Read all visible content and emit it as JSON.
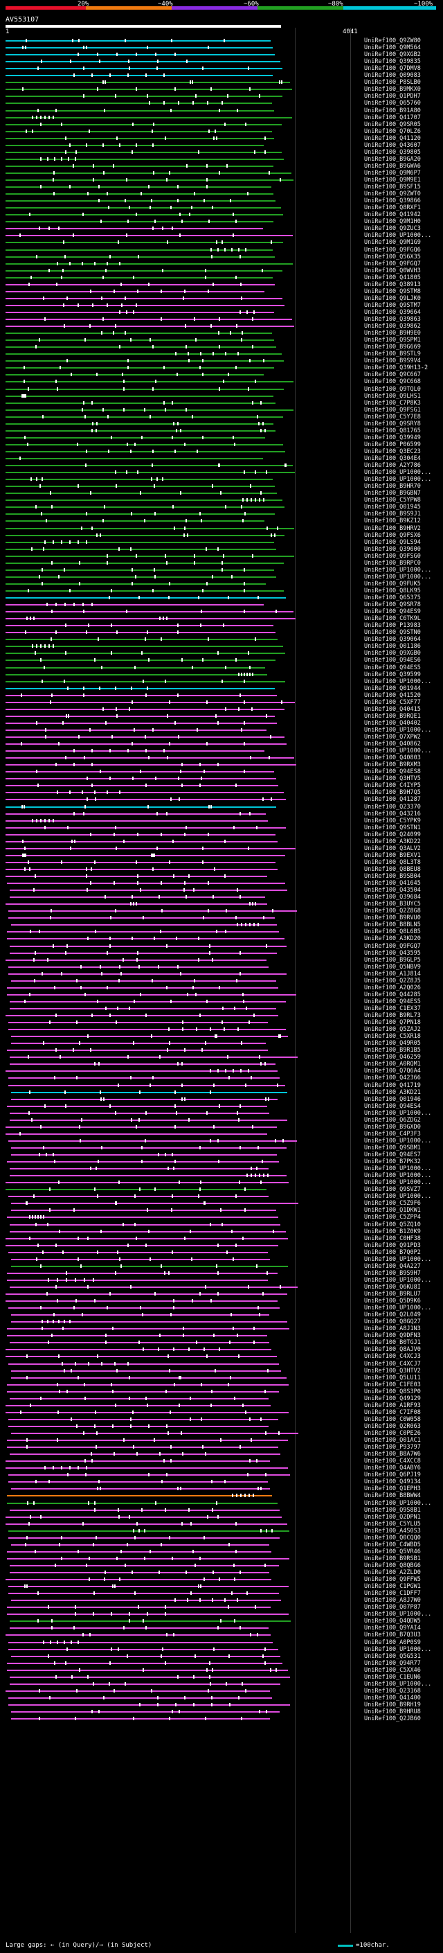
{
  "scale": {
    "segments": [
      {
        "color": "#e8102a",
        "label": "20%"
      },
      {
        "color": "#f07a10",
        "label": "~40%"
      },
      {
        "color": "#8a2be2",
        "label": "~60%"
      },
      {
        "color": "#22a022",
        "label": "~80%"
      },
      {
        "color": "#00c6d8",
        "label": "~100%"
      }
    ]
  },
  "query": {
    "name": "AV553107",
    "start": "1",
    "end": "4041"
  },
  "rows": [
    {
      "label": "UniRef100_Q9ZW80",
      "color": "#00c6d8"
    },
    {
      "label": "UniRef100_Q9M564",
      "color": "#00c6d8"
    },
    {
      "label": "UniRef100_Q9XGB2",
      "color": "#00c6d8"
    },
    {
      "label": "UniRef100_Q39835",
      "color": "#00c6d8"
    },
    {
      "label": "UniRef100_Q7DMV8",
      "color": "#00c6d8"
    },
    {
      "label": "UniRef100_Q09083",
      "color": "#00c6d8"
    },
    {
      "label": "UniRef100_P8SLB0",
      "color": "#22a022"
    },
    {
      "label": "UniRef100_B9MKX0",
      "color": "#22a022"
    },
    {
      "label": "UniRef100_Q1PDH7",
      "color": "#22a022"
    },
    {
      "label": "UniRef100_Q65760",
      "color": "#22a022"
    },
    {
      "label": "UniRef100_B91A80",
      "color": "#22a022"
    },
    {
      "label": "UniRef100_Q41707",
      "color": "#22a022"
    },
    {
      "label": "UniRef100_Q9SR05",
      "color": "#22a022"
    },
    {
      "label": "UniRef100_Q70LZ6",
      "color": "#22a022"
    },
    {
      "label": "UniRef100_Q41120",
      "color": "#22a022"
    },
    {
      "label": "UniRef100_Q43607",
      "color": "#22a022"
    },
    {
      "label": "UniRef100_Q39805",
      "color": "#22a022"
    },
    {
      "label": "UniRef100_B9GA20",
      "color": "#22a022"
    },
    {
      "label": "UniRef100_B9GWA6",
      "color": "#22a022"
    },
    {
      "label": "UniRef100_Q9M6P7",
      "color": "#22a022"
    },
    {
      "label": "UniRef100_Q9M9E1",
      "color": "#22a022"
    },
    {
      "label": "UniRef100_B9SF15",
      "color": "#22a022"
    },
    {
      "label": "UniRef100_Q9ZWT0",
      "color": "#22a022"
    },
    {
      "label": "UniRef100_Q39866",
      "color": "#22a022"
    },
    {
      "label": "UniRef100_Q8RXF1",
      "color": "#22a022"
    },
    {
      "label": "UniRef100_Q41942",
      "color": "#22a022"
    },
    {
      "label": "UniRef100_Q9M1H0",
      "color": "#22a022"
    },
    {
      "label": "UniRef100_Q9ZUC3",
      "color": "#e04ce0"
    },
    {
      "label": "UniRef100_UP1000...",
      "color": "#e04ce0"
    },
    {
      "label": "UniRef100_Q9M1G9",
      "color": "#22a022"
    },
    {
      "label": "UniRef100_Q9FGQ6",
      "color": "#22a022"
    },
    {
      "label": "UniRef100_Q56X35",
      "color": "#22a022"
    },
    {
      "label": "UniRef100_Q9FGQ7",
      "color": "#22a022"
    },
    {
      "label": "UniRef100_Q0WVH3",
      "color": "#22a022"
    },
    {
      "label": "UniRef100_Q41805",
      "color": "#22a022"
    },
    {
      "label": "UniRef100_Q38913",
      "color": "#e04ce0"
    },
    {
      "label": "UniRef100_Q9STM8",
      "color": "#e04ce0"
    },
    {
      "label": "UniRef100_Q9LJK0",
      "color": "#e04ce0"
    },
    {
      "label": "UniRef100_Q9STM7",
      "color": "#e04ce0"
    },
    {
      "label": "UniRef100_Q39664",
      "color": "#e04ce0"
    },
    {
      "label": "UniRef100_Q39863",
      "color": "#e04ce0"
    },
    {
      "label": "UniRef100_Q39862",
      "color": "#e04ce0"
    },
    {
      "label": "UniRef100_B9H9E0",
      "color": "#22a022"
    },
    {
      "label": "UniRef100_Q9SPM1",
      "color": "#22a022"
    },
    {
      "label": "UniRef100_B9G669",
      "color": "#22a022"
    },
    {
      "label": "UniRef100_B9STL9",
      "color": "#22a022"
    },
    {
      "label": "UniRef100_B9S9V4",
      "color": "#22a022"
    },
    {
      "label": "UniRef100_Q39H13-2",
      "color": "#22a022"
    },
    {
      "label": "UniRef100_Q9C667",
      "color": "#22a022"
    },
    {
      "label": "UniRef100_Q9C668",
      "color": "#22a022"
    },
    {
      "label": "UniRef100_Q9TQL0",
      "color": "#22a022"
    },
    {
      "label": "UniRef100_Q9LHS1",
      "color": "#22a022"
    },
    {
      "label": "UniRef100_C7P8K3",
      "color": "#22a022"
    },
    {
      "label": "UniRef100_Q9FSG1",
      "color": "#22a022"
    },
    {
      "label": "UniRef100_C5Y7E8",
      "color": "#22a022"
    },
    {
      "label": "UniRef100_Q9SRY8",
      "color": "#22a022"
    },
    {
      "label": "UniRef100_Q81765",
      "color": "#22a022"
    },
    {
      "label": "UniRef100_Q39949",
      "color": "#22a022"
    },
    {
      "label": "UniRef100_P06599",
      "color": "#22a022"
    },
    {
      "label": "UniRef100_Q3EC23",
      "color": "#22a022"
    },
    {
      "label": "UniRef100_Q304E4",
      "color": "#22a022"
    },
    {
      "label": "UniRef100_A2Y786",
      "color": "#22a022"
    },
    {
      "label": "UniRef100_UP1000...",
      "color": "#22a022"
    },
    {
      "label": "UniRef100_UP1000...",
      "color": "#22a022"
    },
    {
      "label": "UniRef100_B9HR70",
      "color": "#22a022"
    },
    {
      "label": "UniRef100_B9GBN7",
      "color": "#22a022"
    },
    {
      "label": "UniRef100_C5YPW8",
      "color": "#22a022"
    },
    {
      "label": "UniRef100_Q01945",
      "color": "#22a022"
    },
    {
      "label": "UniRef100_B9S9J1",
      "color": "#22a022"
    },
    {
      "label": "UniRef100_B9KZ12",
      "color": "#22a022"
    },
    {
      "label": "UniRef100_B9HRV2",
      "color": "#22a022"
    },
    {
      "label": "UniRef100_Q9FSX6",
      "color": "#22a022"
    },
    {
      "label": "UniRef100_Q9LS94",
      "color": "#22a022"
    },
    {
      "label": "UniRef100_Q39600",
      "color": "#22a022"
    },
    {
      "label": "UniRef100_Q9FSG0",
      "color": "#22a022"
    },
    {
      "label": "UniRef100_B9RPC0",
      "color": "#22a022"
    },
    {
      "label": "UniRef100_UP1000...",
      "color": "#22a022"
    },
    {
      "label": "UniRef100_UP1000...",
      "color": "#22a022"
    },
    {
      "label": "UniRef100_Q9FUK5",
      "color": "#22a022"
    },
    {
      "label": "UniRef100_Q8LK95",
      "color": "#22a022"
    },
    {
      "label": "UniRef100_Q65375",
      "color": "#00c6d8"
    },
    {
      "label": "UniRef100_Q9SR78",
      "color": "#e04ce0"
    },
    {
      "label": "UniRef100_Q94ES9",
      "color": "#e04ce0"
    },
    {
      "label": "UniRef100_C6TK9L",
      "color": "#e04ce0"
    },
    {
      "label": "UniRef100_P13983",
      "color": "#e04ce0"
    },
    {
      "label": "UniRef100_Q9STN0",
      "color": "#e04ce0"
    },
    {
      "label": "UniRef100_Q39064",
      "color": "#22a022"
    },
    {
      "label": "UniRef100_Q01186",
      "color": "#22a022"
    },
    {
      "label": "UniRef100_Q9XGB0",
      "color": "#22a022"
    },
    {
      "label": "UniRef100_Q94ES6",
      "color": "#22a022"
    },
    {
      "label": "UniRef100_Q94ES5",
      "color": "#22a022"
    },
    {
      "label": "UniRef100_Q39599",
      "color": "#22a022"
    },
    {
      "label": "UniRef100_UP1000...",
      "color": "#22a022"
    },
    {
      "label": "UniRef100_Q01944",
      "color": "#00c6d8"
    },
    {
      "label": "UniRef100_Q41520",
      "color": "#e04ce0"
    },
    {
      "label": "UniRef100_C5XF77",
      "color": "#e04ce0"
    },
    {
      "label": "UniRef100_Q40415",
      "color": "#e04ce0"
    },
    {
      "label": "UniRef100_B9RQE1",
      "color": "#e04ce0"
    },
    {
      "label": "UniRef100_Q40402",
      "color": "#e04ce0"
    },
    {
      "label": "UniRef100_UP1000...",
      "color": "#e04ce0"
    },
    {
      "label": "UniRef100_Q7XPW2",
      "color": "#e04ce0"
    },
    {
      "label": "UniRef100_Q40862",
      "color": "#e04ce0"
    },
    {
      "label": "UniRef100_UP1000...",
      "color": "#e04ce0"
    },
    {
      "label": "UniRef100_Q40803",
      "color": "#e04ce0"
    },
    {
      "label": "UniRef100_B9RXM3",
      "color": "#e04ce0"
    },
    {
      "label": "UniRef100_Q94ES8",
      "color": "#e04ce0"
    },
    {
      "label": "UniRef100_Q3HTV5",
      "color": "#e04ce0"
    },
    {
      "label": "UniRef100_C4IYP5",
      "color": "#e04ce0"
    },
    {
      "label": "UniRef100_B9H7Q5",
      "color": "#e04ce0"
    },
    {
      "label": "UniRef100_Q41287",
      "color": "#e04ce0"
    },
    {
      "label": "UniRef100_Q23370",
      "color": "#00c6d8"
    },
    {
      "label": "UniRef100_Q43216",
      "color": "#e04ce0"
    },
    {
      "label": "UniRef100_C5YPK9",
      "color": "#e04ce0"
    },
    {
      "label": "UniRef100_Q9STN1",
      "color": "#e04ce0"
    },
    {
      "label": "UniRef100_Q24099",
      "color": "#e04ce0"
    },
    {
      "label": "UniRef100_A3KD22",
      "color": "#e04ce0"
    },
    {
      "label": "UniRef100_Q3ALV2",
      "color": "#e04ce0"
    },
    {
      "label": "UniRef100_B9EXV1",
      "color": "#e04ce0"
    },
    {
      "label": "UniRef100_Q8L3T8",
      "color": "#e04ce0"
    },
    {
      "label": "UniRef100_Q8BEU8",
      "color": "#e04ce0"
    },
    {
      "label": "UniRef100_B9SB04",
      "color": "#e04ce0"
    },
    {
      "label": "UniRef100_Q41645",
      "color": "#e04ce0"
    },
    {
      "label": "UniRef100_Q43504",
      "color": "#e04ce0"
    },
    {
      "label": "UniRef100_Q39684",
      "color": "#e04ce0"
    },
    {
      "label": "UniRef100_B3UYC5",
      "color": "#e04ce0"
    },
    {
      "label": "UniRef100_Q2Z8G8",
      "color": "#e04ce0"
    },
    {
      "label": "UniRef100_B9RVU0",
      "color": "#e04ce0"
    },
    {
      "label": "UniRef100_B8BLN5",
      "color": "#e04ce0"
    },
    {
      "label": "UniRef100_Q8L6B5",
      "color": "#e04ce0"
    },
    {
      "label": "UniRef100_A3KD20",
      "color": "#e04ce0"
    },
    {
      "label": "UniRef100_Q9FGQ7",
      "color": "#e04ce0"
    },
    {
      "label": "UniRef100_Q43595",
      "color": "#e04ce0"
    },
    {
      "label": "UniRef100_B9GLP5",
      "color": "#e04ce0"
    },
    {
      "label": "UniRef100_Q5NBV9",
      "color": "#e04ce0"
    },
    {
      "label": "UniRef100_A1J814",
      "color": "#e04ce0"
    },
    {
      "label": "UniRef100_Q2Z8J5",
      "color": "#e04ce0"
    },
    {
      "label": "UniRef100_A2Q026",
      "color": "#e04ce0"
    },
    {
      "label": "UniRef100_Q44285",
      "color": "#e04ce0"
    },
    {
      "label": "UniRef100_Q94ES5",
      "color": "#e04ce0"
    },
    {
      "label": "UniRef100_C1EX37",
      "color": "#e04ce0"
    },
    {
      "label": "UniRef100_B9RL73",
      "color": "#e04ce0"
    },
    {
      "label": "UniRef100_Q7PN18",
      "color": "#e04ce0"
    },
    {
      "label": "UniRef100_Q5ZAJ2",
      "color": "#e04ce0"
    },
    {
      "label": "UniRef100_C5XR18",
      "color": "#e04ce0"
    },
    {
      "label": "UniRef100_Q49R05",
      "color": "#e04ce0"
    },
    {
      "label": "UniRef100_B9R1B5",
      "color": "#e04ce0"
    },
    {
      "label": "UniRef100_Q46259",
      "color": "#e04ce0"
    },
    {
      "label": "UniRef100_A0RQM1",
      "color": "#e04ce0"
    },
    {
      "label": "UniRef100_Q7Q6A4",
      "color": "#e04ce0"
    },
    {
      "label": "UniRef100_Q42366",
      "color": "#e04ce0"
    },
    {
      "label": "UniRef100_Q41719",
      "color": "#e04ce0"
    },
    {
      "label": "UniRef100_A3KD21",
      "color": "#00c6d8"
    },
    {
      "label": "UniRef100_Q01946",
      "color": "#e04ce0"
    },
    {
      "label": "UniRef100_Q94ES4",
      "color": "#e04ce0"
    },
    {
      "label": "UniRef100_UP1000...",
      "color": "#e04ce0"
    },
    {
      "label": "UniRef100_Q6ZDG2",
      "color": "#e04ce0"
    },
    {
      "label": "UniRef100_B9GXD0",
      "color": "#e04ce0"
    },
    {
      "label": "UniRef100_C4P3F3",
      "color": "#e04ce0"
    },
    {
      "label": "UniRef100_UP1000...",
      "color": "#e04ce0"
    },
    {
      "label": "UniRef100_Q9SBM1",
      "color": "#e04ce0"
    },
    {
      "label": "UniRef100_Q94ES7",
      "color": "#e04ce0"
    },
    {
      "label": "UniRef100_B7PK32",
      "color": "#e04ce0"
    },
    {
      "label": "UniRef100_UP1000...",
      "color": "#e04ce0"
    },
    {
      "label": "UniRef100_UP1000...",
      "color": "#e04ce0"
    },
    {
      "label": "UniRef100_UP1000...",
      "color": "#e04ce0"
    },
    {
      "label": "UniRef100_Q9SVZ7",
      "color": "#22a022"
    },
    {
      "label": "UniRef100_UP1000...",
      "color": "#e04ce0"
    },
    {
      "label": "UniRef100_C5Z9F6",
      "color": "#e04ce0"
    },
    {
      "label": "UniRef100_Q1DKW1",
      "color": "#e04ce0"
    },
    {
      "label": "UniRef100_C5ZPP4",
      "color": "#e04ce0"
    },
    {
      "label": "UniRef100_Q5ZQ10",
      "color": "#e04ce0"
    },
    {
      "label": "UniRef100_B1Z0K9",
      "color": "#e04ce0"
    },
    {
      "label": "UniRef100_C0HF38",
      "color": "#e04ce0"
    },
    {
      "label": "UniRef100_Q91PD3",
      "color": "#e04ce0"
    },
    {
      "label": "UniRef100_B7Q0P2",
      "color": "#e04ce0"
    },
    {
      "label": "UniRef100_UP1000...",
      "color": "#e04ce0"
    },
    {
      "label": "UniRef100_Q4A227",
      "color": "#22a022"
    },
    {
      "label": "UniRef100_B9S9H7",
      "color": "#e04ce0"
    },
    {
      "label": "UniRef100_UP1000...",
      "color": "#e04ce0"
    },
    {
      "label": "UniRef100_Q6KU8I",
      "color": "#e04ce0"
    },
    {
      "label": "UniRef100_B9RLU7",
      "color": "#e04ce0"
    },
    {
      "label": "UniRef100_Q5D9K6",
      "color": "#e04ce0"
    },
    {
      "label": "UniRef100_UP1000...",
      "color": "#e04ce0"
    },
    {
      "label": "UniRef100_Q2L049",
      "color": "#e04ce0"
    },
    {
      "label": "UniRef100_Q8GQ27",
      "color": "#e04ce0"
    },
    {
      "label": "UniRef100_A8J1N3",
      "color": "#e04ce0"
    },
    {
      "label": "UniRef100_Q9DFN3",
      "color": "#e04ce0"
    },
    {
      "label": "UniRef100_B0TGJ1",
      "color": "#e04ce0"
    },
    {
      "label": "UniRef100_Q8AJV0",
      "color": "#e04ce0"
    },
    {
      "label": "UniRef100_C4XCJ3",
      "color": "#e04ce0"
    },
    {
      "label": "UniRef100_C4XCJ7",
      "color": "#e04ce0"
    },
    {
      "label": "UniRef100_Q3HTV2",
      "color": "#e04ce0"
    },
    {
      "label": "UniRef100_Q5LU11",
      "color": "#e04ce0"
    },
    {
      "label": "UniRef100_C1FE03",
      "color": "#e04ce0"
    },
    {
      "label": "UniRef100_Q8S3P0",
      "color": "#e04ce0"
    },
    {
      "label": "UniRef100_Q49129",
      "color": "#e04ce0"
    },
    {
      "label": "UniRef100_A1RF93",
      "color": "#e04ce0"
    },
    {
      "label": "UniRef100_C7IF08",
      "color": "#e04ce0"
    },
    {
      "label": "UniRef100_C0W058",
      "color": "#e04ce0"
    },
    {
      "label": "UniRef100_Q2R063",
      "color": "#e04ce0"
    },
    {
      "label": "UniRef100_C0PE26",
      "color": "#e04ce0"
    },
    {
      "label": "UniRef100_Q01AC1",
      "color": "#e04ce0"
    },
    {
      "label": "UniRef100_P93797",
      "color": "#e04ce0"
    },
    {
      "label": "UniRef100_B8A7W6",
      "color": "#e04ce0"
    },
    {
      "label": "UniRef100_C4XCC8",
      "color": "#e04ce0"
    },
    {
      "label": "UniRef100_Q4ABY6",
      "color": "#e04ce0"
    },
    {
      "label": "UniRef100_Q6PJ19",
      "color": "#e04ce0"
    },
    {
      "label": "UniRef100_Q49134",
      "color": "#e04ce0"
    },
    {
      "label": "UniRef100_Q1EPH3",
      "color": "#e04ce0"
    },
    {
      "label": "UniRef100_B8BWW4",
      "color": "#f07a10"
    },
    {
      "label": "UniRef100_UP1000...",
      "color": "#22a022"
    },
    {
      "label": "UniRef100_Q9S8B1",
      "color": "#e04ce0"
    },
    {
      "label": "UniRef100_Q2DPN1",
      "color": "#e04ce0"
    },
    {
      "label": "UniRef100_C5YLU5",
      "color": "#e04ce0"
    },
    {
      "label": "UniRef100_A4S0S3",
      "color": "#22a022"
    },
    {
      "label": "UniRef100_Q0CQQ0",
      "color": "#e04ce0"
    },
    {
      "label": "UniRef100_C4WBD5",
      "color": "#e04ce0"
    },
    {
      "label": "UniRef100_Q5VR46",
      "color": "#e04ce0"
    },
    {
      "label": "UniRef100_B9RSB1",
      "color": "#e04ce0"
    },
    {
      "label": "UniRef100_Q8QBG6",
      "color": "#e04ce0"
    },
    {
      "label": "UniRef100_A2ZLD0",
      "color": "#e04ce0"
    },
    {
      "label": "UniRef100_Q9FFW5",
      "color": "#e04ce0"
    },
    {
      "label": "UniRef100_C1PGW1",
      "color": "#e04ce0"
    },
    {
      "label": "UniRef100_C1DFF7",
      "color": "#e04ce0"
    },
    {
      "label": "UniRef100_A8J7W0",
      "color": "#e04ce0"
    },
    {
      "label": "UniRef100_Q07P87",
      "color": "#e04ce0"
    },
    {
      "label": "UniRef100_UP1000...",
      "color": "#e04ce0"
    },
    {
      "label": "UniRef100_Q4QDW5",
      "color": "#22a022"
    },
    {
      "label": "UniRef100_Q9YAI4",
      "color": "#e04ce0"
    },
    {
      "label": "UniRef100_B7Q3U3",
      "color": "#e04ce0"
    },
    {
      "label": "UniRef100_A0P0S9",
      "color": "#e04ce0"
    },
    {
      "label": "UniRef100_UP1000...",
      "color": "#e04ce0"
    },
    {
      "label": "UniRef100_Q5G531",
      "color": "#e04ce0"
    },
    {
      "label": "UniRef100_Q94R77",
      "color": "#e04ce0"
    },
    {
      "label": "UniRef100_C5XX46",
      "color": "#e04ce0"
    },
    {
      "label": "UniRef100_C1EUN6",
      "color": "#e04ce0"
    },
    {
      "label": "UniRef100_UP1000...",
      "color": "#e04ce0"
    },
    {
      "label": "UniRef100_Q23168",
      "color": "#e04ce0"
    },
    {
      "label": "UniRef100_Q41400",
      "color": "#e04ce0"
    },
    {
      "label": "UniRef100_B9RH19",
      "color": "#e04ce0"
    },
    {
      "label": "UniRef100_B9HRU8",
      "color": "#e04ce0"
    },
    {
      "label": "UniRef100_Q2JB60",
      "color": "#e04ce0"
    }
  ],
  "footer": {
    "gaps_label": "Large gaps: ← (in Query)/→ (in Subject)",
    "scale_label": "=100char."
  }
}
